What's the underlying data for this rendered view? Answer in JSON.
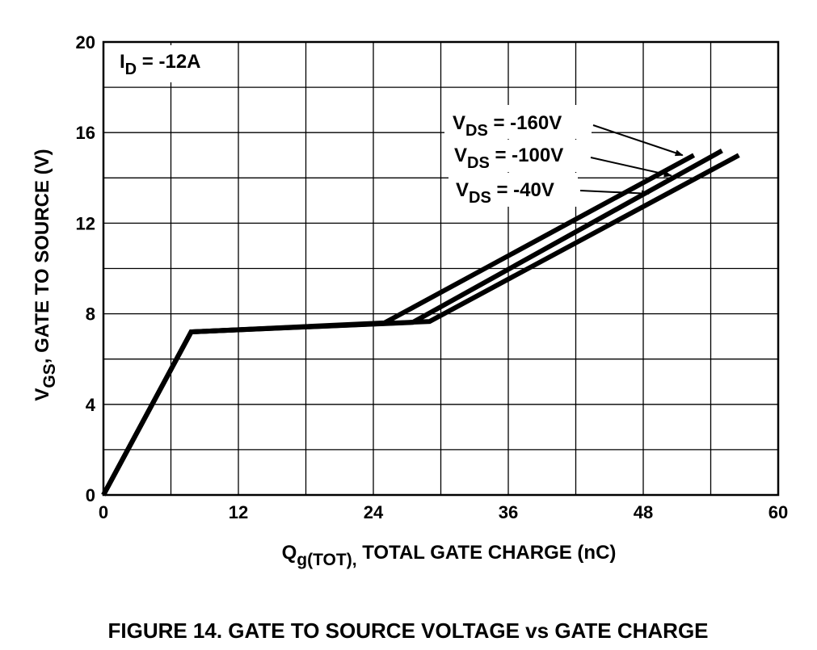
{
  "chart_data": {
    "type": "line",
    "title": "",
    "xlabel_main": "Q",
    "xlabel_sub": "g(TOT),",
    "xlabel_rest": " TOTAL GATE CHARGE (nC)",
    "ylabel_main": "V",
    "ylabel_sub": "GS",
    "ylabel_rest": ", GATE TO SOURCE (V)",
    "xlim": [
      0,
      60
    ],
    "ylim": [
      0,
      20
    ],
    "xticks": [
      0,
      12,
      24,
      36,
      48,
      60
    ],
    "yticks": [
      0,
      4,
      8,
      12,
      16,
      20
    ],
    "grid_x_step": 6,
    "grid_y_step": 2,
    "grid": true,
    "condition": {
      "main": "I",
      "sub": "D",
      "rest": " = -12A"
    },
    "series": [
      {
        "name": "V_DS = -160V",
        "label_main": "V",
        "label_sub": "DS",
        "label_rest": " = -160V",
        "points": [
          [
            0,
            0
          ],
          [
            7.8,
            7.2
          ],
          [
            25,
            7.6
          ],
          [
            52.5,
            15.0
          ]
        ],
        "pointer_end": [
          51.5,
          15.0
        ]
      },
      {
        "name": "V_DS = -100V",
        "label_main": "V",
        "label_sub": "DS",
        "label_rest": " = -100V",
        "points": [
          [
            0,
            0
          ],
          [
            7.8,
            7.2
          ],
          [
            27.5,
            7.62
          ],
          [
            55,
            15.2
          ]
        ],
        "pointer_end": [
          50.5,
          14.1
        ]
      },
      {
        "name": "V_DS = -40V",
        "label_main": "V",
        "label_sub": "DS",
        "label_rest": " = -40V",
        "points": [
          [
            0,
            0
          ],
          [
            7.8,
            7.2
          ],
          [
            29,
            7.66
          ],
          [
            56.5,
            15.0
          ]
        ],
        "pointer_end": [
          48.5,
          13.3
        ]
      }
    ]
  },
  "caption": "FIGURE 14.  GATE TO SOURCE VOLTAGE vs GATE CHARGE"
}
